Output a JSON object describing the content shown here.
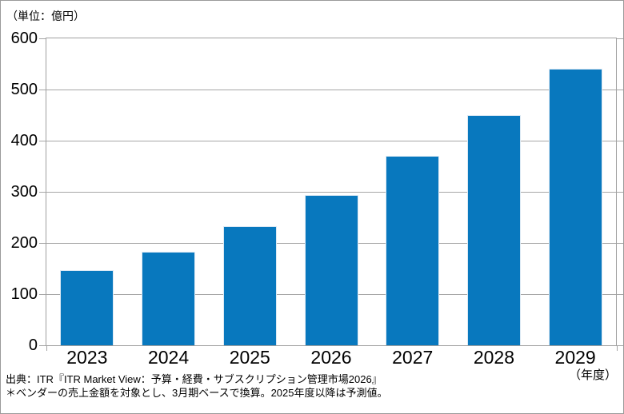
{
  "chart_data": {
    "type": "bar",
    "unit_label": "（単位：億円）",
    "xlabel": "（年度）",
    "categories": [
      "2023",
      "2024",
      "2025",
      "2026",
      "2027",
      "2028",
      "2029"
    ],
    "values": [
      147,
      183,
      233,
      294,
      370,
      450,
      540
    ],
    "ylim": [
      0,
      600
    ],
    "yticks": [
      0,
      100,
      200,
      300,
      400,
      500,
      600
    ],
    "grid": true,
    "legend": "none",
    "bar_color": "#0878be",
    "bar_edge_color": "#dce9f4",
    "grid_color": "#a6a6a6",
    "text_color": "#000000"
  },
  "footer": {
    "source_line1": "出典：ITR『ITR Market View：予算・経費・サブスクリプション管理市場2026』",
    "source_line2": "＊ベンダーの売上金額を対象とし、3月期ベースで換算。2025年度以降は予測値。"
  }
}
